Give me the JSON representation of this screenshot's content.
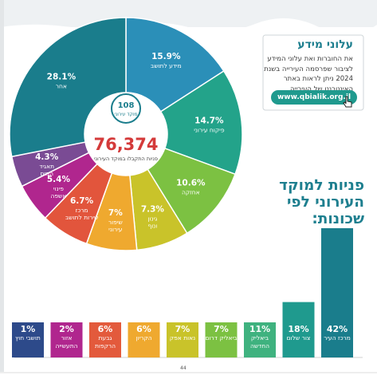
{
  "info": {
    "title": "עלוני מידע",
    "body": "את החוברות ואת עלוני המידע לציבור שפרסמה העירייה בשנת 2024 ניתן לראות באתר האינטרנט של העירייה",
    "url": "www.qbialik.org.il"
  },
  "headline": "פניות למוקד העירוני לפי שכונות:",
  "donut_center": {
    "logo_label": "מוקד עירוני",
    "logo_number": "108",
    "total": "76,374",
    "total_caption": "פניות התקבלו במוקד העירוני"
  },
  "colors": {
    "teal": "#1a7d8c",
    "green": "#7cc142",
    "yellow": "#c9c32a",
    "orange": "#ef9f2f",
    "red": "#e35a3c",
    "magenta": "#b0268e",
    "purple": "#7a4b94",
    "navy": "#2d4a8a",
    "headline": "#1e7f8f"
  },
  "chart_data": [
    {
      "type": "pie",
      "title": "",
      "categories": [
        "מידע לתושב",
        "פיקוח עירוני",
        "אחזקה",
        "גינון ונוף",
        "שיפור עירוני",
        "מרכז שירות לתושב",
        "פינוי אשפה",
        "תאגיד המים",
        "אחר"
      ],
      "values": [
        15.9,
        14.7,
        10.6,
        7.3,
        7,
        6.7,
        5.4,
        4.3,
        28.1
      ],
      "labels": [
        "15.9%",
        "14.7%",
        "10.6%",
        "7.3%",
        "7%",
        "6.7%",
        "5.4%",
        "4.3%",
        "28.1%"
      ],
      "colors": [
        "#2b8fb8",
        "#23a38a",
        "#7cc142",
        "#c9c32a",
        "#efa92f",
        "#e2553c",
        "#b0268e",
        "#7a4b94",
        "#1a7d8c"
      ]
    },
    {
      "type": "bar",
      "title": "פניות למוקד העירוני לפי שכונות:",
      "categories": [
        "מרכז העיר",
        "צור שלום",
        "ביאליק החדשה",
        "ביאליק דרום",
        "נאות אפק",
        "הקריון",
        "גבעת הרקפות",
        "אזור התעשייה",
        "תושבי חוץ"
      ],
      "values": [
        42,
        18,
        11,
        7,
        7,
        6,
        6,
        2,
        1
      ],
      "labels": [
        "42%",
        "18%",
        "11%",
        "7%",
        "7%",
        "6%",
        "6%",
        "2%",
        "1%"
      ],
      "colors": [
        "#1a7d8c",
        "#1f9a8e",
        "#3fb27f",
        "#7cc142",
        "#c9c32a",
        "#efa92f",
        "#e35a3c",
        "#b0268e",
        "#2d4a8a"
      ]
    }
  ],
  "page_number": "44"
}
